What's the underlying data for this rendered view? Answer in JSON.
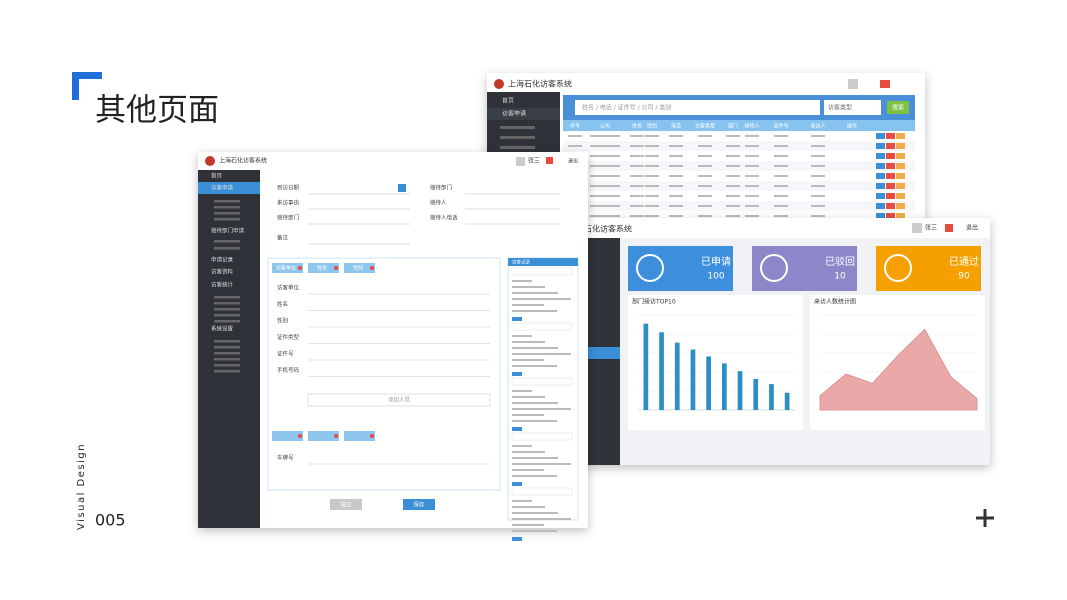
{
  "title": "其他页面",
  "side_label": "Visual Design",
  "page_number": "005",
  "screens": {
    "list": {
      "app_title": "上海石化访客系统",
      "nav": [
        "首页",
        "访客申请"
      ],
      "search_placeholder": "姓名 / 电话 / 证件号 / 公司 / 类别",
      "filter": "访客类型",
      "button": "搜索",
      "columns": [
        "序号",
        "公司",
        "姓名",
        "性别",
        "电话",
        "访客类型",
        "部门",
        "接待人",
        "证件号",
        "来访人",
        "操作"
      ]
    },
    "form": {
      "app_title": "上海石化访客系统",
      "user": "张三",
      "logout": "退出",
      "nav": [
        "首页",
        "访客申请",
        "接待部门申请",
        "申请记录",
        "访客资料",
        "访客统计",
        "系统设置"
      ],
      "top_fields": [
        "到访日期",
        "来访事由",
        "接待部门",
        "备注"
      ],
      "right_fields": [
        "接待部门",
        "接待人",
        "接待人电话"
      ],
      "tabs": [
        "访客单位",
        "姓名",
        "性别"
      ],
      "fields": [
        "访客单位",
        "姓名",
        "性别",
        "证件类型",
        "证件号",
        "手机号码",
        "车牌号"
      ],
      "add_visitor": "添加人员",
      "side_panel_title": "访客记录",
      "buttons": [
        "提交",
        "保存"
      ]
    },
    "dashboard": {
      "app_title": "上海石化访客系统",
      "user": "张三",
      "logout": "退出",
      "cards": [
        {
          "label": "已申请",
          "value": "100"
        },
        {
          "label": "已驳回",
          "value": "10"
        },
        {
          "label": "已通过",
          "value": "90"
        }
      ],
      "bar_chart": {
        "type": "bar",
        "title": "部门接访TOP10",
        "values": [
          100,
          90,
          78,
          70,
          62,
          54,
          45,
          36,
          30,
          20
        ],
        "ylim": [
          0,
          110
        ]
      },
      "line_chart": {
        "type": "area",
        "title": "来访人数统计图",
        "values": [
          15,
          38,
          28,
          58,
          85,
          35,
          12
        ],
        "ylim": [
          0,
          100
        ]
      }
    }
  }
}
